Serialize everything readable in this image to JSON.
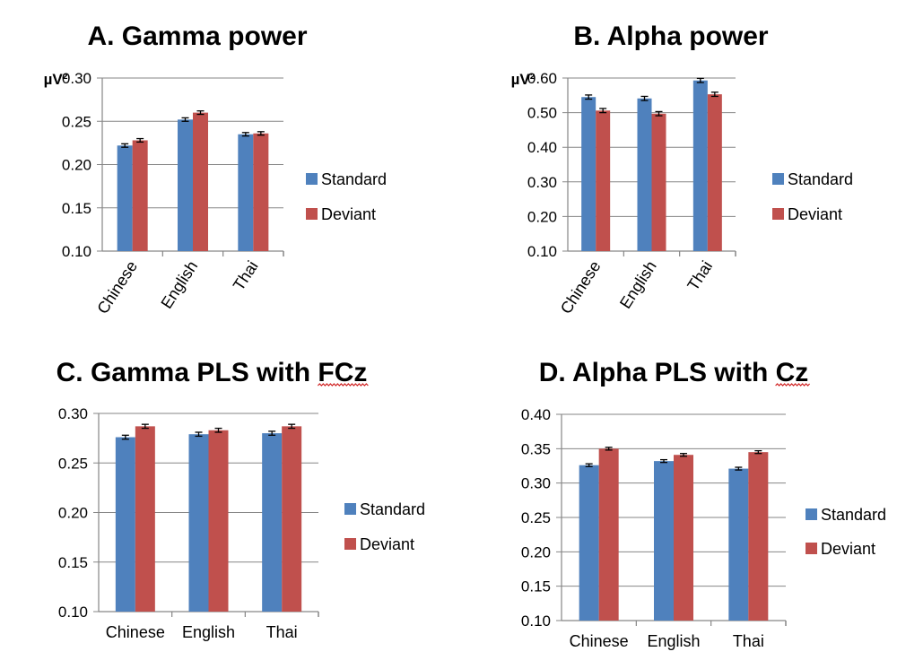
{
  "colors": {
    "standard": "#4f81bd",
    "deviant": "#c0504d"
  },
  "chart_data": [
    {
      "type": "bar",
      "title": "A. Gamma power",
      "ylabel": "µV²",
      "categories": [
        "Chinese",
        "English",
        "Thai"
      ],
      "series": [
        {
          "name": "Standard",
          "values": [
            0.222,
            0.252,
            0.235
          ],
          "errors": [
            0.002,
            0.002,
            0.002
          ]
        },
        {
          "name": "Deviant",
          "values": [
            0.228,
            0.26,
            0.236
          ],
          "errors": [
            0.002,
            0.002,
            0.002
          ]
        }
      ],
      "ylim": [
        0.1,
        0.3
      ],
      "yticks": [
        "0.10",
        "0.15",
        "0.20",
        "0.25",
        "0.30"
      ],
      "grid": true,
      "legend": "right",
      "xtick_rotation": "rotated"
    },
    {
      "type": "bar",
      "title": "B. Alpha power",
      "ylabel": "µV²",
      "categories": [
        "Chinese",
        "English",
        "Thai"
      ],
      "series": [
        {
          "name": "Standard",
          "values": [
            0.545,
            0.541,
            0.593
          ],
          "errors": [
            0.006,
            0.006,
            0.006
          ]
        },
        {
          "name": "Deviant",
          "values": [
            0.506,
            0.497,
            0.553
          ],
          "errors": [
            0.006,
            0.006,
            0.006
          ]
        }
      ],
      "ylim": [
        0.1,
        0.6
      ],
      "yticks": [
        "0.10",
        "0.20",
        "0.30",
        "0.40",
        "0.50",
        "0.60"
      ],
      "grid": true,
      "legend": "right",
      "xtick_rotation": "rotated"
    },
    {
      "type": "bar",
      "title": "C. Gamma PLS with FCz",
      "title_underlined": "FCz",
      "ylabel": "",
      "categories": [
        "Chinese",
        "English",
        "Thai"
      ],
      "series": [
        {
          "name": "Standard",
          "values": [
            0.276,
            0.279,
            0.28
          ],
          "errors": [
            0.002,
            0.002,
            0.002
          ]
        },
        {
          "name": "Deviant",
          "values": [
            0.287,
            0.283,
            0.287
          ],
          "errors": [
            0.002,
            0.002,
            0.002
          ]
        }
      ],
      "ylim": [
        0.1,
        0.3
      ],
      "yticks": [
        "0.10",
        "0.15",
        "0.20",
        "0.25",
        "0.30"
      ],
      "grid": true,
      "legend": "right",
      "xtick_rotation": "horizontal"
    },
    {
      "type": "bar",
      "title": "D. Alpha PLS with Cz",
      "title_underlined": "Cz",
      "ylabel": "",
      "categories": [
        "Chinese",
        "English",
        "Thai"
      ],
      "series": [
        {
          "name": "Standard",
          "values": [
            0.326,
            0.332,
            0.321
          ],
          "errors": [
            0.002,
            0.002,
            0.002
          ]
        },
        {
          "name": "Deviant",
          "values": [
            0.35,
            0.341,
            0.345
          ],
          "errors": [
            0.002,
            0.002,
            0.002
          ]
        }
      ],
      "ylim": [
        0.1,
        0.4
      ],
      "yticks": [
        "0.10",
        "0.15",
        "0.20",
        "0.25",
        "0.30",
        "0.35",
        "0.40"
      ],
      "grid": true,
      "legend": "right",
      "xtick_rotation": "horizontal"
    }
  ]
}
